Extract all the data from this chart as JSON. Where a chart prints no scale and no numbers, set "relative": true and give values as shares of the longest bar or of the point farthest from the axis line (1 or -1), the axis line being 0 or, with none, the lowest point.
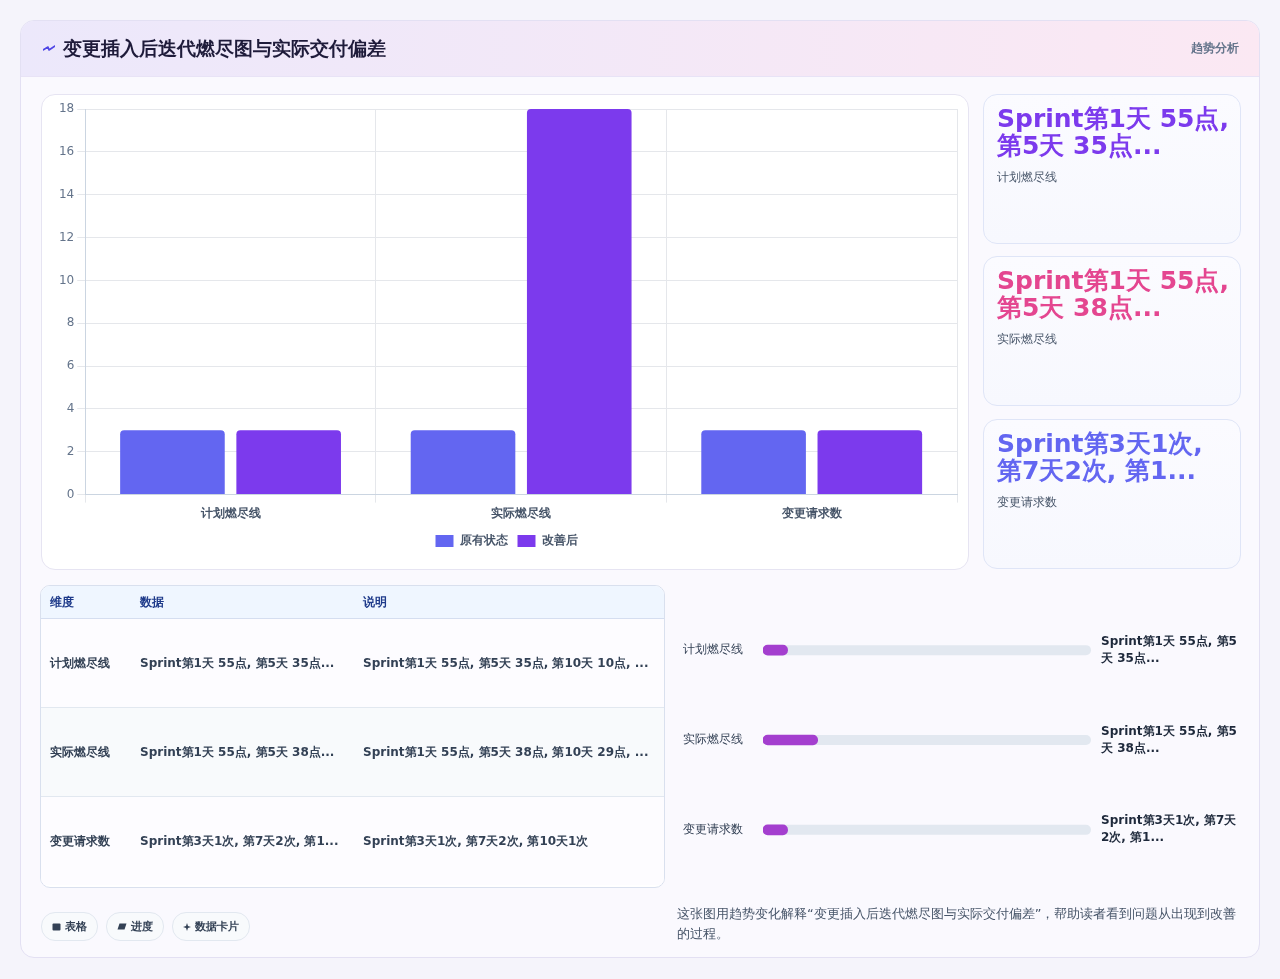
{
  "chart_data": [
    {
      "type": "other",
      "title": "变更插入后迭代燃尽图与实际交付偏差",
      "subtitle": "趋势分析"
    },
    {
      "type": "bar",
      "categories": [
        "计划燃尽线",
        "实际燃尽线",
        "变更请求数"
      ],
      "series": [
        {
          "name": "原有状态",
          "color": "#6366f1",
          "values": [
            3,
            3,
            3
          ]
        },
        {
          "name": "改善后",
          "color": "#7c3aed",
          "values": [
            3,
            18,
            3
          ]
        }
      ],
      "ylim": [
        0,
        18
      ],
      "yticks": [
        0,
        2,
        4,
        6,
        8,
        10,
        12,
        14,
        16,
        18
      ],
      "grid": true,
      "legend": "bottom"
    },
    {
      "type": "other",
      "title": "Sprint第1天 55点, 第5天 35点...",
      "subtitle": "计划燃尽线"
    },
    {
      "type": "other",
      "title": "Sprint第1天 55点, 第5天 38点...",
      "subtitle": "实际燃尽线"
    },
    {
      "type": "other",
      "title": "Sprint第3天1次, 第7天2次, 第1...",
      "subtitle": "变更请求数"
    },
    {
      "type": "other",
      "ylabel": "维度",
      "categories": [
        "数据",
        "说明"
      ],
      "y_categories": [
        "计划燃尽线",
        "实际燃尽线",
        "变更请求数"
      ],
      "cell_labels": [
        [
          "Sprint第1天 55点, 第5天 35点...",
          "Sprint第1天 55点, 第5天 35点, 第10天 10点, ..."
        ],
        [
          "Sprint第1天 55点, 第5天 38点...",
          "Sprint第1天 55点, 第5天 38点, 第10天 29点, ..."
        ],
        [
          "Sprint第3天1次, 第7天2次, 第1...",
          "Sprint第3天1次, 第7天2次, 第10天1次"
        ]
      ]
    },
    {
      "type": "bar",
      "orientation": "horizontal",
      "relative": true,
      "categories": [
        "计划燃尽线",
        "实际燃尽线",
        "变更请求数"
      ],
      "values": [
        0.45,
        1,
        0.45
      ],
      "color": "#a43fcf",
      "annotations": [
        "Sprint第1天 55点, 第5天 35点...",
        "Sprint第1天 55点, 第5天 38点...",
        "Sprint第3天1次, 第7天2次, 第1..."
      ]
    },
    {
      "type": "other",
      "annotations": [
        "表格",
        "进度",
        "数据卡片"
      ]
    },
    {
      "type": "other",
      "annotations": [
        "这张图用趋势变化解释“变更插入后迭代燃尽图与实际交付偏差”，帮助读者看到问题从出现到改善的过程。"
      ]
    }
  ]
}
